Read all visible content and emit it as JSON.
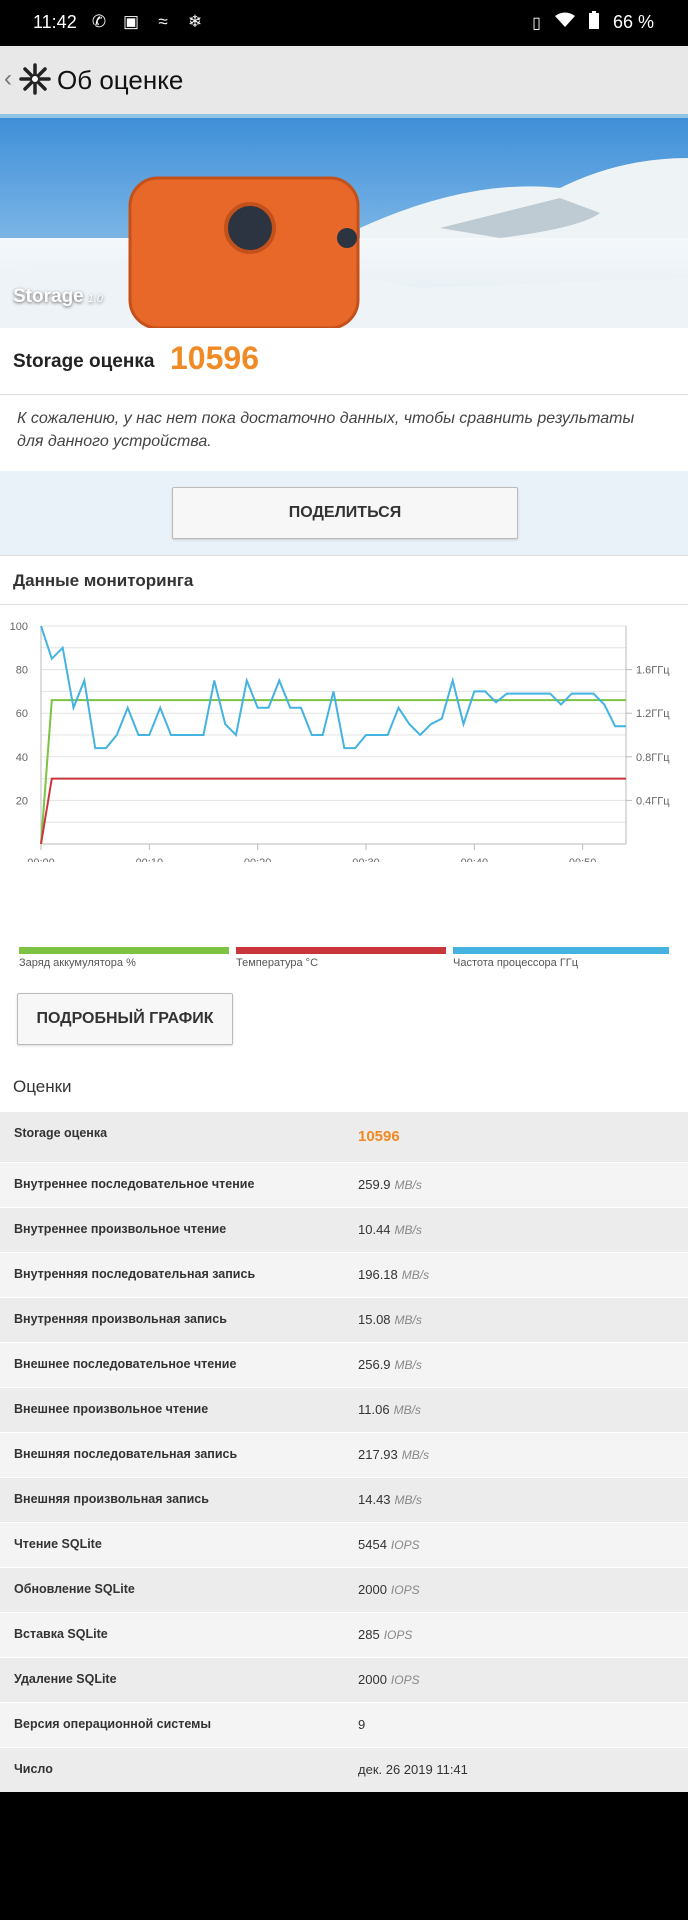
{
  "statusbar": {
    "time": "11:42",
    "battery_pct": "66 %"
  },
  "toolbar": {
    "title": "Об оценке"
  },
  "hero": {
    "name": "Storage",
    "version": "1.0"
  },
  "score": {
    "label": "Storage оценка",
    "value": "10596"
  },
  "notice": "К сожалению, у нас нет пока достаточно данных, чтобы сравнить результаты для данного устройства.",
  "share_label": "ПОДЕЛИТЬСЯ",
  "monitoring_title": "Данные мониторинга",
  "detail_button": "ПОДРОБНЫЙ ГРАФИК",
  "ratings_title": "Оценки",
  "colors": {
    "battery": "#7dc243",
    "temperature": "#c8363c",
    "cpu": "#44b3e1",
    "accent": "#f08a24"
  },
  "chart_data": {
    "type": "line",
    "x_tick_labels": [
      "00:00",
      "00:10",
      "00:20",
      "00:30",
      "00:40",
      "00:50"
    ],
    "y_left": {
      "ticks": [
        20,
        40,
        60,
        80,
        100
      ],
      "ylim": [
        0,
        100
      ]
    },
    "y_right": {
      "ticks": [
        "0.4ГГц",
        "0.8ГГц",
        "1.2ГГц",
        "1.6ГГц"
      ],
      "ylim": [
        0,
        2.0
      ]
    },
    "series": [
      {
        "name": "Заряд аккумулятора %",
        "color": "#7dc243",
        "x": [
          0,
          1,
          54
        ],
        "y": [
          0,
          66,
          66
        ]
      },
      {
        "name": "Температура °C",
        "color": "#c8363c",
        "x": [
          0,
          1,
          54
        ],
        "y": [
          0,
          30,
          30
        ]
      },
      {
        "name": "Частота процессора ГГц",
        "color": "#44b3e1",
        "axis": "right",
        "x": [
          0,
          1,
          2,
          3,
          4,
          5,
          6,
          7,
          8,
          9,
          10,
          11,
          12,
          13,
          14,
          15,
          16,
          17,
          18,
          19,
          20,
          21,
          22,
          23,
          24,
          25,
          26,
          27,
          28,
          29,
          30,
          31,
          32,
          33,
          34,
          35,
          36,
          37,
          38,
          39,
          40,
          41,
          42,
          43,
          44,
          45,
          46,
          47,
          48,
          49,
          50,
          51,
          52,
          53,
          54
        ],
        "y": [
          2.0,
          1.7,
          1.8,
          1.25,
          1.5,
          0.88,
          0.88,
          1.0,
          1.25,
          1.0,
          1.0,
          1.25,
          1.0,
          1.0,
          1.0,
          1.0,
          1.5,
          1.1,
          1.0,
          1.5,
          1.25,
          1.25,
          1.5,
          1.25,
          1.25,
          1.0,
          1.0,
          1.4,
          0.88,
          0.88,
          1.0,
          1.0,
          1.0,
          1.25,
          1.1,
          1.0,
          1.1,
          1.15,
          1.5,
          1.1,
          1.4,
          1.4,
          1.3,
          1.38,
          1.38,
          1.38,
          1.38,
          1.38,
          1.28,
          1.38,
          1.38,
          1.38,
          1.28,
          1.08,
          1.08
        ]
      }
    ]
  },
  "ratings": [
    {
      "label": "Storage оценка",
      "value": "10596",
      "unit": ""
    },
    {
      "label": "Внутреннее последовательное чтение",
      "value": "259.9",
      "unit": "MB/s"
    },
    {
      "label": "Внутреннее произвольное чтение",
      "value": "10.44",
      "unit": "MB/s"
    },
    {
      "label": "Внутренняя последовательная запись",
      "value": "196.18",
      "unit": "MB/s"
    },
    {
      "label": "Внутренняя произвольная запись",
      "value": "15.08",
      "unit": "MB/s"
    },
    {
      "label": "Внешнее последовательное чтение",
      "value": "256.9",
      "unit": "MB/s"
    },
    {
      "label": "Внешнее произвольное чтение",
      "value": "11.06",
      "unit": "MB/s"
    },
    {
      "label": "Внешняя последовательная запись",
      "value": "217.93",
      "unit": "MB/s"
    },
    {
      "label": "Внешняя произвольная запись",
      "value": "14.43",
      "unit": "MB/s"
    },
    {
      "label": "Чтение SQLite",
      "value": "5454",
      "unit": "IOPS"
    },
    {
      "label": "Обновление SQLite",
      "value": "2000",
      "unit": "IOPS"
    },
    {
      "label": "Вставка SQLite",
      "value": "285",
      "unit": "IOPS"
    },
    {
      "label": "Удаление SQLite",
      "value": "2000",
      "unit": "IOPS"
    },
    {
      "label": "Версия операционной системы",
      "value": "9",
      "unit": ""
    },
    {
      "label": "Число",
      "value": "дек. 26 2019 11:41",
      "unit": ""
    }
  ]
}
